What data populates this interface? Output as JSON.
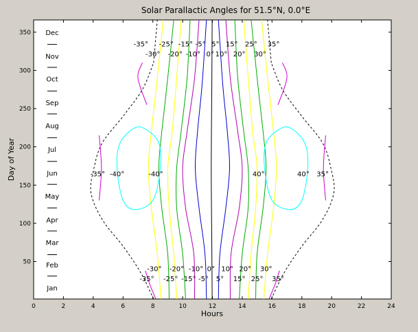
{
  "chart_data": {
    "type": "line",
    "title": "Solar Parallactic Angles for 51.5°N, 0.0°E",
    "xlabel": "Hours",
    "ylabel": "Day of Year",
    "xlim": [
      0,
      24
    ],
    "ylim": [
      1,
      366
    ],
    "xticks": [
      0,
      2,
      4,
      6,
      8,
      10,
      12,
      14,
      16,
      18,
      20,
      22,
      24
    ],
    "yticks": [
      50,
      100,
      150,
      200,
      250,
      300,
      350
    ],
    "grid": false,
    "legend": "none",
    "background": "#ffffff",
    "frame_background": "#d4d0c8",
    "months": [
      {
        "label": "Jan",
        "day": 16
      },
      {
        "label": "Feb",
        "day": 46
      },
      {
        "label": "Mar",
        "day": 75
      },
      {
        "label": "Apr",
        "day": 105
      },
      {
        "label": "May",
        "day": 136
      },
      {
        "label": "Jun",
        "day": 166
      },
      {
        "label": "Jul",
        "day": 197
      },
      {
        "label": "Aug",
        "day": 228
      },
      {
        "label": "Sep",
        "day": 258
      },
      {
        "label": "Oct",
        "day": 289
      },
      {
        "label": "Nov",
        "day": 319
      },
      {
        "label": "Dec",
        "day": 350
      }
    ],
    "month_dividers": [
      31,
      59,
      90,
      120,
      151,
      181,
      212,
      243,
      273,
      304,
      334
    ],
    "daylight_boundary": {
      "style": "dashed",
      "color": "#000000",
      "sunrise": {
        "x": [
          8.05,
          7.2,
          6.0,
          4.6,
          3.85,
          4.05,
          4.6,
          6.0,
          7.3,
          8.05
        ],
        "y": [
          1,
          35,
          70,
          105,
          140,
          172,
          205,
          240,
          275,
          310
        ]
      },
      "sunset": {
        "x": [
          15.95,
          16.8,
          18.0,
          19.4,
          20.15,
          19.95,
          19.4,
          18.0,
          16.7,
          15.95
        ],
        "y": [
          1,
          35,
          70,
          105,
          140,
          172,
          205,
          240,
          275,
          310
        ]
      },
      "top_edges": [
        {
          "x": [
            8.05,
            8.3
          ],
          "y": [
            310,
            366
          ]
        },
        {
          "x": [
            15.95,
            15.7
          ],
          "y": [
            310,
            366
          ]
        }
      ]
    },
    "contours": [
      {
        "name": "0°",
        "color": "#000000",
        "x": [
          11.98,
          11.96,
          11.93,
          11.92,
          11.93,
          11.96,
          11.98
        ],
        "y": [
          1,
          70,
          130,
          172,
          215,
          280,
          366
        ]
      },
      {
        "name": "-5°",
        "color": "#0000cc",
        "x": [
          11.6,
          11.5,
          11.1,
          10.85,
          11.0,
          11.3,
          11.6
        ],
        "y": [
          1,
          60,
          120,
          172,
          220,
          280,
          366
        ]
      },
      {
        "name": "5°",
        "color": "#0000cc",
        "x": [
          12.4,
          12.5,
          12.9,
          13.15,
          13.0,
          12.7,
          12.4
        ],
        "y": [
          1,
          60,
          120,
          172,
          220,
          280,
          366
        ]
      },
      {
        "name": "-10°",
        "color": "#b000b0",
        "x": [
          10.8,
          10.75,
          10.2,
          10.0,
          10.3,
          10.8,
          11.1
        ],
        "y": [
          1,
          60,
          120,
          172,
          220,
          290,
          366
        ]
      },
      {
        "name": "10°",
        "color": "#b000b0",
        "x": [
          13.2,
          13.25,
          13.8,
          14.0,
          13.7,
          13.2,
          12.9
        ],
        "y": [
          1,
          60,
          120,
          172,
          220,
          290,
          366
        ]
      },
      {
        "name": "-15°",
        "color": "#00aa00",
        "x": [
          10.2,
          10.0,
          9.6,
          9.6,
          9.9,
          10.3,
          10.5
        ],
        "y": [
          1,
          60,
          120,
          172,
          220,
          290,
          366
        ]
      },
      {
        "name": "15°",
        "color": "#00aa00",
        "x": [
          13.8,
          14.0,
          14.4,
          14.4,
          14.1,
          13.7,
          13.5
        ],
        "y": [
          1,
          60,
          120,
          172,
          220,
          290,
          366
        ]
      },
      {
        "name": "-20°",
        "color": "#ffff00",
        "x": [
          9.6,
          9.4,
          9.1,
          9.0,
          9.3,
          9.6,
          9.9
        ],
        "y": [
          1,
          60,
          120,
          172,
          220,
          290,
          366
        ]
      },
      {
        "name": "20°",
        "color": "#ffff00",
        "x": [
          14.4,
          14.6,
          14.9,
          15.0,
          14.7,
          14.4,
          14.1
        ],
        "y": [
          1,
          60,
          120,
          172,
          220,
          290,
          366
        ]
      },
      {
        "name": "-25°",
        "color": "#00aa00",
        "x": [
          9.1,
          9.0,
          8.6,
          8.4,
          8.6,
          9.0,
          9.4
        ],
        "y": [
          1,
          60,
          120,
          172,
          220,
          290,
          366
        ]
      },
      {
        "name": "25°",
        "color": "#00aa00",
        "x": [
          14.9,
          15.0,
          15.4,
          15.6,
          15.4,
          15.0,
          14.6
        ],
        "y": [
          1,
          60,
          120,
          172,
          220,
          290,
          366
        ]
      },
      {
        "name": "-30°",
        "color": "#ffff00",
        "x": [
          8.55,
          8.3,
          7.9,
          7.7,
          7.9,
          8.3,
          8.7
        ],
        "y": [
          1,
          60,
          120,
          172,
          220,
          290,
          366
        ]
      },
      {
        "name": "30°",
        "color": "#ffff00",
        "x": [
          15.45,
          15.7,
          16.1,
          16.3,
          16.1,
          15.7,
          15.3
        ],
        "y": [
          1,
          60,
          120,
          172,
          220,
          290,
          366
        ]
      },
      {
        "name": "-35° (morning)",
        "color": "#cc00cc",
        "x": [
          8.2,
          7.8,
          7.5
        ],
        "y": [
          1,
          20,
          38
        ]
      },
      {
        "name": "-35° (evening)",
        "color": "#cc00cc",
        "x": [
          7.3,
          7.0,
          7.6
        ],
        "y": [
          310,
          290,
          255
        ]
      },
      {
        "name": "35° (morning)",
        "color": "#cc00cc",
        "x": [
          15.8,
          16.2,
          16.5
        ],
        "y": [
          1,
          20,
          38
        ]
      },
      {
        "name": "35° (evening)",
        "color": "#cc00cc",
        "x": [
          16.7,
          17.0,
          16.4
        ],
        "y": [
          310,
          290,
          255
        ]
      },
      {
        "name": "-35° (summer)",
        "color": "#cc00cc",
        "x": [
          4.4,
          4.55,
          4.4
        ],
        "y": [
          130,
          172,
          215
        ]
      },
      {
        "name": "35° (summer)",
        "color": "#cc00cc",
        "x": [
          19.6,
          19.45,
          19.6
        ],
        "y": [
          130,
          172,
          215
        ]
      },
      {
        "name": "-40°",
        "color": "#00ffff",
        "closed": true,
        "x": [
          6.8,
          5.8,
          5.6,
          6.0,
          6.8,
          8.0,
          8.5,
          8.4,
          7.6
        ],
        "y": [
          225,
          205,
          172,
          130,
          118,
          130,
          172,
          205,
          222
        ]
      },
      {
        "name": "40°",
        "color": "#00ffff",
        "closed": true,
        "x": [
          17.2,
          18.2,
          18.4,
          18.0,
          17.2,
          16.0,
          15.5,
          15.6,
          16.4
        ],
        "y": [
          225,
          205,
          172,
          130,
          118,
          130,
          172,
          205,
          222
        ]
      }
    ],
    "annotations": [
      {
        "text": "-35°",
        "x": 7.2,
        "y": 335
      },
      {
        "text": "-25°",
        "x": 8.9,
        "y": 335
      },
      {
        "text": "-15°",
        "x": 10.2,
        "y": 335
      },
      {
        "text": "-5°",
        "x": 11.2,
        "y": 335
      },
      {
        "text": "5°",
        "x": 12.2,
        "y": 335
      },
      {
        "text": "15°",
        "x": 13.3,
        "y": 335
      },
      {
        "text": "25°",
        "x": 14.6,
        "y": 335
      },
      {
        "text": "35°",
        "x": 16.1,
        "y": 335
      },
      {
        "text": "-30°",
        "x": 8.0,
        "y": 322
      },
      {
        "text": "-20°",
        "x": 9.5,
        "y": 322
      },
      {
        "text": "-10°",
        "x": 10.7,
        "y": 322
      },
      {
        "text": "0°",
        "x": 11.85,
        "y": 322
      },
      {
        "text": "10°",
        "x": 12.6,
        "y": 322
      },
      {
        "text": "20°",
        "x": 13.8,
        "y": 322
      },
      {
        "text": "30°",
        "x": 15.2,
        "y": 322
      },
      {
        "text": "-35°",
        "x": 4.3,
        "y": 165
      },
      {
        "text": "-40°",
        "x": 5.6,
        "y": 165
      },
      {
        "text": "-40°",
        "x": 8.2,
        "y": 165
      },
      {
        "text": "40°",
        "x": 15.1,
        "y": 165
      },
      {
        "text": "40°",
        "x": 18.1,
        "y": 165
      },
      {
        "text": "35°",
        "x": 19.4,
        "y": 165
      },
      {
        "text": "-30°",
        "x": 8.1,
        "y": 41
      },
      {
        "text": "-20°",
        "x": 9.6,
        "y": 41
      },
      {
        "text": "-10°",
        "x": 10.9,
        "y": 41
      },
      {
        "text": "0°",
        "x": 11.9,
        "y": 41
      },
      {
        "text": "10°",
        "x": 13.0,
        "y": 41
      },
      {
        "text": "20°",
        "x": 14.2,
        "y": 41
      },
      {
        "text": "30°",
        "x": 15.6,
        "y": 41
      },
      {
        "text": "-35°",
        "x": 7.6,
        "y": 28
      },
      {
        "text": "-25°",
        "x": 9.2,
        "y": 28
      },
      {
        "text": "-15°",
        "x": 10.4,
        "y": 28
      },
      {
        "text": "-5°",
        "x": 11.4,
        "y": 28
      },
      {
        "text": "5°",
        "x": 12.5,
        "y": 28
      },
      {
        "text": "15°",
        "x": 13.8,
        "y": 28
      },
      {
        "text": "25°",
        "x": 15.0,
        "y": 28
      },
      {
        "text": "35°",
        "x": 16.4,
        "y": 28
      }
    ]
  }
}
